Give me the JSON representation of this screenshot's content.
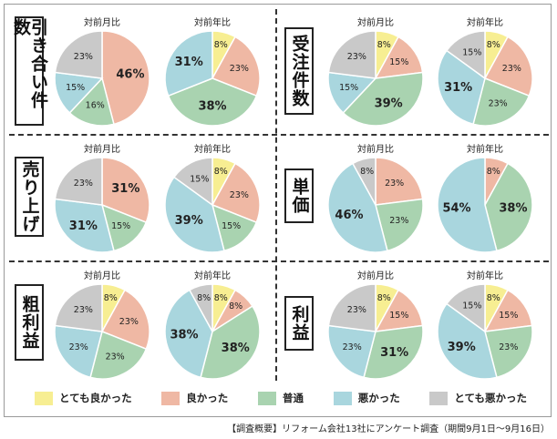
{
  "colors": {
    "very_good": "#f7ee92",
    "good": "#efb8a4",
    "normal": "#a9d3b0",
    "bad": "#a9d6de",
    "very_bad": "#c9c9c9"
  },
  "subtitles": {
    "mom": "対前月比",
    "yoy": "対前年比"
  },
  "legend": [
    {
      "key": "very_good",
      "label": "とても良かった"
    },
    {
      "key": "good",
      "label": "良かった"
    },
    {
      "key": "normal",
      "label": "普通"
    },
    {
      "key": "bad",
      "label": "悪かった"
    },
    {
      "key": "very_bad",
      "label": "とても悪かった"
    }
  ],
  "footnote": "【調査概要】リフォーム会社13社にアンケート調査（期間9月1日〜9月16日）",
  "categories": [
    {
      "id": "inquiries",
      "label": "引き合い件数"
    },
    {
      "id": "orders",
      "label": "受注件数"
    },
    {
      "id": "sales",
      "label": "売り上げ"
    },
    {
      "id": "unit_price",
      "label": "単価"
    },
    {
      "id": "gross_profit",
      "label": "粗利益"
    },
    {
      "id": "profit",
      "label": "利益"
    }
  ],
  "chart_data": [
    {
      "type": "pie",
      "category": "引き合い件数",
      "title": "対前月比",
      "slices": [
        {
          "key": "good",
          "label": "46%",
          "value": 46
        },
        {
          "key": "normal",
          "label": "16%",
          "value": 16
        },
        {
          "key": "bad",
          "label": "15%",
          "value": 15
        },
        {
          "key": "very_bad",
          "label": "23%",
          "value": 23
        }
      ]
    },
    {
      "type": "pie",
      "category": "引き合い件数",
      "title": "対前年比",
      "slices": [
        {
          "key": "very_good",
          "label": "8%",
          "value": 8
        },
        {
          "key": "good",
          "label": "23%",
          "value": 23
        },
        {
          "key": "normal",
          "label": "38%",
          "value": 38
        },
        {
          "key": "bad",
          "label": "31%",
          "value": 31
        }
      ]
    },
    {
      "type": "pie",
      "category": "受注件数",
      "title": "対前月比",
      "slices": [
        {
          "key": "very_good",
          "label": "8%",
          "value": 8
        },
        {
          "key": "good",
          "label": "15%",
          "value": 15
        },
        {
          "key": "normal",
          "label": "39%",
          "value": 39
        },
        {
          "key": "bad",
          "label": "15%",
          "value": 15
        },
        {
          "key": "very_bad",
          "label": "23%",
          "value": 23
        }
      ]
    },
    {
      "type": "pie",
      "category": "受注件数",
      "title": "対前年比",
      "slices": [
        {
          "key": "very_good",
          "label": "8%",
          "value": 8
        },
        {
          "key": "good",
          "label": "23%",
          "value": 23
        },
        {
          "key": "normal",
          "label": "23%",
          "value": 23
        },
        {
          "key": "bad",
          "label": "31%",
          "value": 31
        },
        {
          "key": "very_bad",
          "label": "15%",
          "value": 15
        }
      ]
    },
    {
      "type": "pie",
      "category": "売り上げ",
      "title": "対前月比",
      "slices": [
        {
          "key": "good",
          "label": "31%",
          "value": 31
        },
        {
          "key": "normal",
          "label": "15%",
          "value": 15
        },
        {
          "key": "bad",
          "label": "31%",
          "value": 31
        },
        {
          "key": "very_bad",
          "label": "23%",
          "value": 23
        }
      ]
    },
    {
      "type": "pie",
      "category": "売り上げ",
      "title": "対前年比",
      "slices": [
        {
          "key": "very_good",
          "label": "8%",
          "value": 8
        },
        {
          "key": "good",
          "label": "23%",
          "value": 23
        },
        {
          "key": "normal",
          "label": "15%",
          "value": 15
        },
        {
          "key": "bad",
          "label": "39%",
          "value": 39
        },
        {
          "key": "very_bad",
          "label": "15%",
          "value": 15
        }
      ]
    },
    {
      "type": "pie",
      "category": "単価",
      "title": "対前月比",
      "slices": [
        {
          "key": "good",
          "label": "23%",
          "value": 23
        },
        {
          "key": "normal",
          "label": "23%",
          "value": 23
        },
        {
          "key": "bad",
          "label": "46%",
          "value": 46
        },
        {
          "key": "very_bad",
          "label": "8%",
          "value": 8
        }
      ]
    },
    {
      "type": "pie",
      "category": "単価",
      "title": "対前年比",
      "slices": [
        {
          "key": "good",
          "label": "8%",
          "value": 8
        },
        {
          "key": "normal",
          "label": "38%",
          "value": 38
        },
        {
          "key": "bad",
          "label": "54%",
          "value": 54
        }
      ]
    },
    {
      "type": "pie",
      "category": "粗利益",
      "title": "対前月比",
      "slices": [
        {
          "key": "very_good",
          "label": "8%",
          "value": 8
        },
        {
          "key": "good",
          "label": "23%",
          "value": 23
        },
        {
          "key": "normal",
          "label": "23%",
          "value": 23
        },
        {
          "key": "bad",
          "label": "23%",
          "value": 23
        },
        {
          "key": "very_bad",
          "label": "23%",
          "value": 23
        }
      ]
    },
    {
      "type": "pie",
      "category": "粗利益",
      "title": "対前年比",
      "slices": [
        {
          "key": "very_good",
          "label": "8%",
          "value": 8
        },
        {
          "key": "good",
          "label": "8%",
          "value": 8
        },
        {
          "key": "normal",
          "label": "38%",
          "value": 38
        },
        {
          "key": "bad",
          "label": "38%",
          "value": 38
        },
        {
          "key": "very_bad",
          "label": "8%",
          "value": 8
        }
      ]
    },
    {
      "type": "pie",
      "category": "利益",
      "title": "対前月比",
      "slices": [
        {
          "key": "very_good",
          "label": "8%",
          "value": 8
        },
        {
          "key": "good",
          "label": "15%",
          "value": 15
        },
        {
          "key": "normal",
          "label": "31%",
          "value": 31
        },
        {
          "key": "bad",
          "label": "23%",
          "value": 23
        },
        {
          "key": "very_bad",
          "label": "23%",
          "value": 23
        }
      ]
    },
    {
      "type": "pie",
      "category": "利益",
      "title": "対前年比",
      "slices": [
        {
          "key": "very_good",
          "label": "8%",
          "value": 8
        },
        {
          "key": "good",
          "label": "15%",
          "value": 15
        },
        {
          "key": "normal",
          "label": "23%",
          "value": 23
        },
        {
          "key": "bad",
          "label": "39%",
          "value": 39
        },
        {
          "key": "very_bad",
          "label": "15%",
          "value": 15
        }
      ]
    }
  ]
}
